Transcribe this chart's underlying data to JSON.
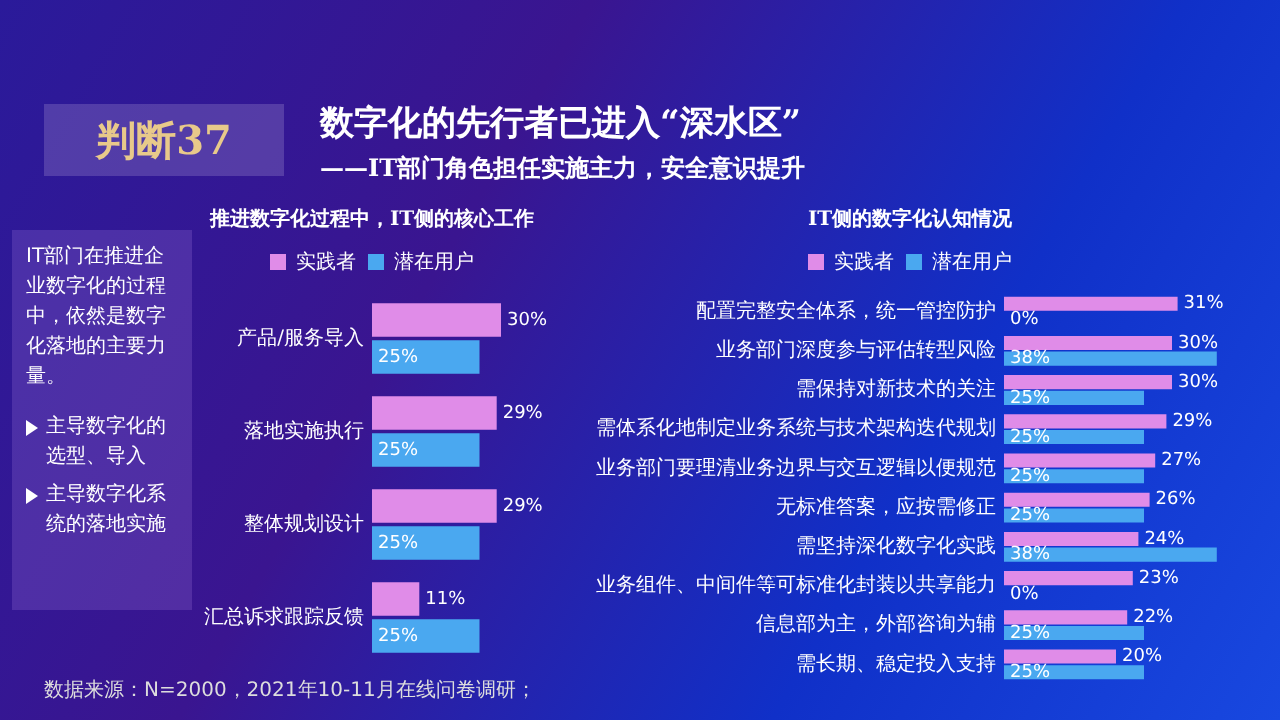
{
  "chart_data": [
    {
      "type": "other",
      "title": "数字化的先行者已进入“深水区”",
      "subtitle": "——IT部门角色担任实施主力，安全意识提升",
      "annotations": [
        "判断37",
        "IT部门在推进企业数字化的过程中，依然是数字化落地的主要力量。",
        "主导数字化的选型、导入",
        "主导数字化系统的落地实施",
        "数据来源：N=2000，2021年10-11月在线问卷调研；"
      ]
    },
    {
      "type": "bar",
      "orientation": "horizontal",
      "title": "推进数字化过程中，IT侧的核心工作",
      "categories": [
        "产品/服务导入",
        "落地实施执行",
        "整体规划设计",
        "汇总诉求跟踪反馈"
      ],
      "legend": "top",
      "tick_labels": "y",
      "series": [
        {
          "name": "实践者",
          "color": "#e08ce8",
          "values": [
            30,
            29,
            29,
            11
          ],
          "value_labels": [
            "30%",
            "29%",
            "29%",
            "11%"
          ]
        },
        {
          "name": "潜在用户",
          "color": "#4aa8f0",
          "values": [
            25,
            25,
            25,
            25
          ],
          "value_labels": [
            "25%",
            "25%",
            "25%",
            "25%"
          ]
        }
      ]
    },
    {
      "type": "bar",
      "orientation": "horizontal",
      "title": "IT侧的数字化认知情况",
      "categories": [
        "配置完整安全体系，统一管控防护",
        "业务部门深度参与评估转型风险",
        "需保持对新技术的关注",
        "需体系化地制定业务系统与技术架构迭代规划",
        "业务部门要理清业务边界与交互逻辑以便规范",
        "无标准答案，应按需修正",
        "需坚持深化数字化实践",
        "业务组件、中间件等可标准化封装以共享能力",
        "信息部为主，外部咨询为辅",
        "需长期、稳定投入支持"
      ],
      "legend": "top",
      "tick_labels": "y",
      "series": [
        {
          "name": "实践者",
          "color": "#e08ce8",
          "values": [
            31,
            30,
            30,
            29,
            27,
            26,
            24,
            23,
            22,
            20
          ],
          "value_labels": [
            "31%",
            "30%",
            "30%",
            "29%",
            "27%",
            "26%",
            "24%",
            "23%",
            "22%",
            "20%"
          ]
        },
        {
          "name": "潜在用户",
          "color": "#4aa8f0",
          "values": [
            0,
            38,
            25,
            25,
            25,
            25,
            38,
            0,
            25,
            25
          ],
          "value_labels": [
            "0%",
            "38%",
            "25%",
            "25%",
            "25%",
            "25%",
            "38%",
            "0%",
            "25%",
            "25%"
          ]
        }
      ]
    }
  ]
}
